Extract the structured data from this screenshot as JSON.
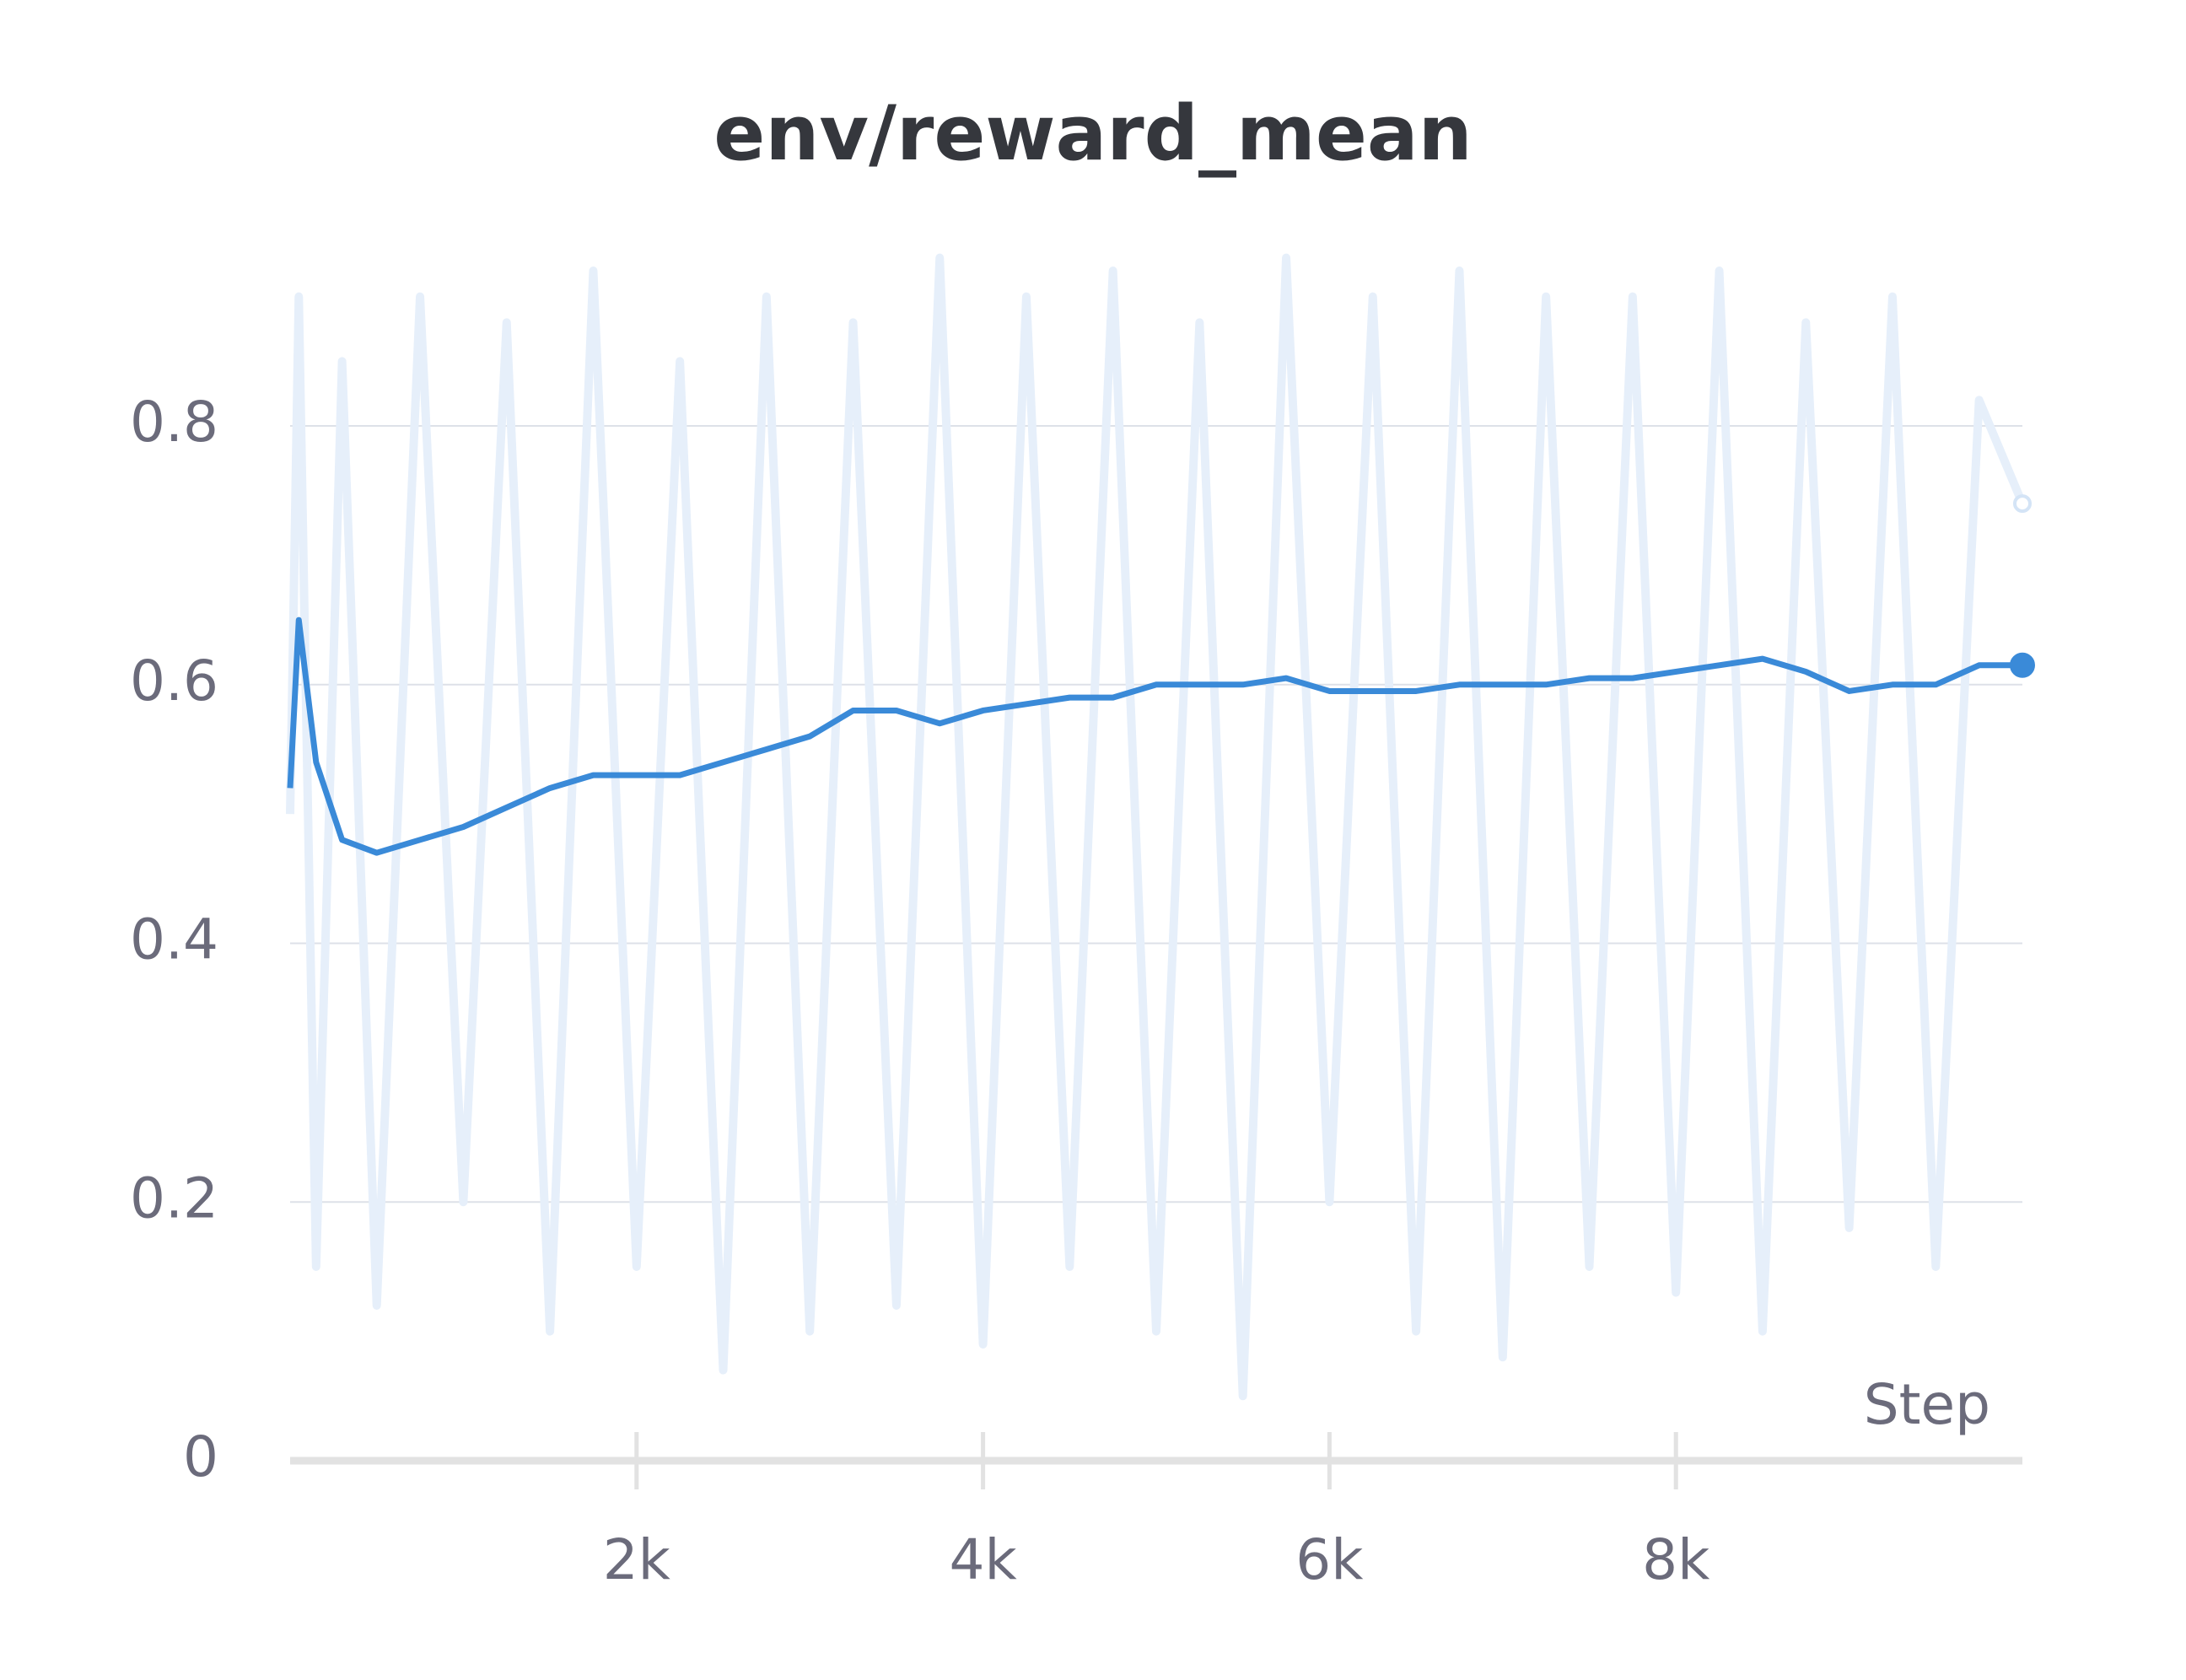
{
  "chart_data": {
    "type": "line",
    "title": "env/reward_mean",
    "x_label": "Step",
    "x": [
      0,
      50,
      150,
      300,
      500,
      750,
      1000,
      1250,
      1500,
      1750,
      2000,
      2250,
      2500,
      2750,
      3000,
      3250,
      3500,
      3750,
      4000,
      4250,
      4500,
      4750,
      5000,
      5250,
      5500,
      5750,
      6000,
      6250,
      6500,
      6750,
      7000,
      7250,
      7500,
      7750,
      8000,
      8250,
      8500,
      8750,
      9000,
      9250,
      9500,
      9750,
      10000
    ],
    "series": [
      {
        "color": "#e6effa",
        "values": [
          0.5,
          0.9,
          0.15,
          0.85,
          0.12,
          0.9,
          0.2,
          0.88,
          0.1,
          0.92,
          0.15,
          0.85,
          0.07,
          0.9,
          0.1,
          0.88,
          0.12,
          0.93,
          0.09,
          0.9,
          0.15,
          0.92,
          0.1,
          0.88,
          0.05,
          0.93,
          0.2,
          0.9,
          0.1,
          0.92,
          0.08,
          0.9,
          0.15,
          0.9,
          0.13,
          0.92,
          0.1,
          0.88,
          0.18,
          0.9,
          0.15,
          0.82,
          0.74
        ]
      },
      {
        "color": "#3a8ad8",
        "values": [
          0.52,
          0.65,
          0.54,
          0.48,
          0.47,
          0.48,
          0.49,
          0.505,
          0.52,
          0.53,
          0.53,
          0.53,
          0.54,
          0.55,
          0.56,
          0.58,
          0.58,
          0.57,
          0.58,
          0.585,
          0.59,
          0.59,
          0.6,
          0.6,
          0.6,
          0.605,
          0.595,
          0.595,
          0.595,
          0.6,
          0.6,
          0.6,
          0.605,
          0.605,
          0.61,
          0.615,
          0.62,
          0.61,
          0.595,
          0.6,
          0.6,
          0.615,
          0.615
        ]
      }
    ],
    "xlim": [
      0,
      10000
    ],
    "xticks": [
      {
        "value": 2000,
        "label": "2k"
      },
      {
        "value": 4000,
        "label": "4k"
      },
      {
        "value": 6000,
        "label": "6k"
      },
      {
        "value": 8000,
        "label": "8k"
      }
    ],
    "ylim": [
      0,
      0.95
    ],
    "yticks": [
      0,
      0.2,
      0.4,
      0.6,
      0.8
    ],
    "grid": true
  }
}
